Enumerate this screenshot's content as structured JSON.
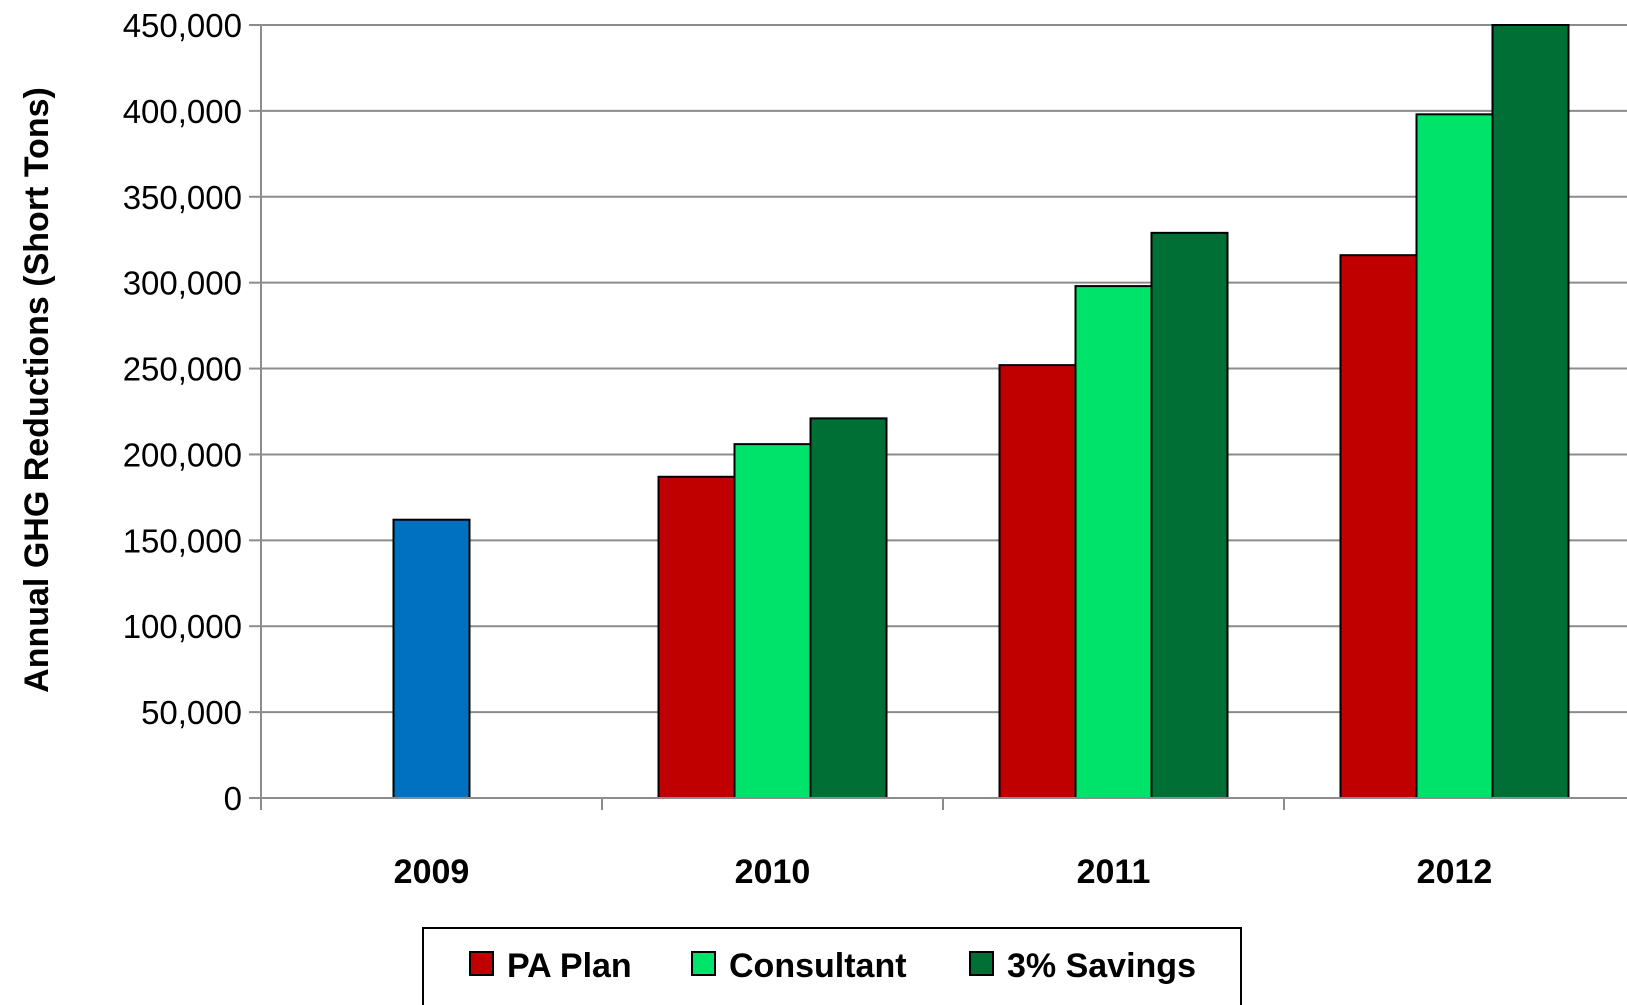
{
  "chart_data": {
    "type": "bar",
    "title": "",
    "xlabel": "",
    "ylabel": "Annual GHG Reductions (Short Tons)",
    "categories": [
      "2009",
      "2010",
      "2011",
      "2012"
    ],
    "ylim": [
      0,
      450000
    ],
    "yticks": [
      0,
      50000,
      100000,
      150000,
      200000,
      250000,
      300000,
      350000,
      400000,
      450000
    ],
    "ytick_labels": [
      "0",
      "50,000",
      "100,000",
      "150,000",
      "200,000",
      "250,000",
      "300,000",
      "350,000",
      "400,000",
      "450,000"
    ],
    "grid": true,
    "legend_position": "bottom",
    "series": [
      {
        "name": "",
        "color": "#0070C0",
        "values": [
          162000,
          null,
          null,
          null
        ]
      },
      {
        "name": "PA Plan",
        "color": "#C00000",
        "values": [
          null,
          187000,
          252000,
          316000
        ]
      },
      {
        "name": "Consultant",
        "color": "#00E36B",
        "values": [
          null,
          206000,
          298000,
          398000
        ]
      },
      {
        "name": "3% Savings",
        "color": "#006F35",
        "values": [
          null,
          221000,
          329000,
          450000
        ]
      }
    ]
  }
}
